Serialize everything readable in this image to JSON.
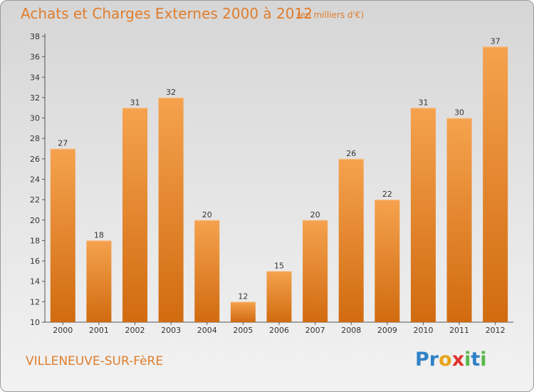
{
  "chart_data": {
    "type": "bar",
    "title": "Achats et Charges Externes 2000 à 2012",
    "subtitle": "(en milliers d'€)",
    "categories": [
      "2000",
      "2001",
      "2002",
      "2003",
      "2004",
      "2005",
      "2006",
      "2007",
      "2008",
      "2009",
      "2010",
      "2011",
      "2012"
    ],
    "values": [
      27,
      18,
      31,
      32,
      20,
      12,
      15,
      20,
      26,
      22,
      31,
      30,
      37
    ],
    "ylim": [
      10,
      38
    ],
    "yticks": [
      10,
      12,
      14,
      16,
      18,
      20,
      22,
      24,
      26,
      28,
      30,
      32,
      34,
      36,
      38
    ],
    "grid": false,
    "bar_color_top": "#f5a24e",
    "bar_color_bottom": "#d16b10"
  },
  "footer": {
    "commune": "VILLENEUVE-SUR-FèRE",
    "logo_letters": [
      {
        "ch": "P",
        "color": "#2f82c7"
      },
      {
        "ch": "r",
        "color": "#2f82c7"
      },
      {
        "ch": "o",
        "color": "#e9a41c"
      },
      {
        "ch": "x",
        "color": "#e0322f"
      },
      {
        "ch": "i",
        "color": "#58b84a"
      },
      {
        "ch": "t",
        "color": "#2f82c7"
      },
      {
        "ch": "i",
        "color": "#58b84a"
      }
    ]
  }
}
